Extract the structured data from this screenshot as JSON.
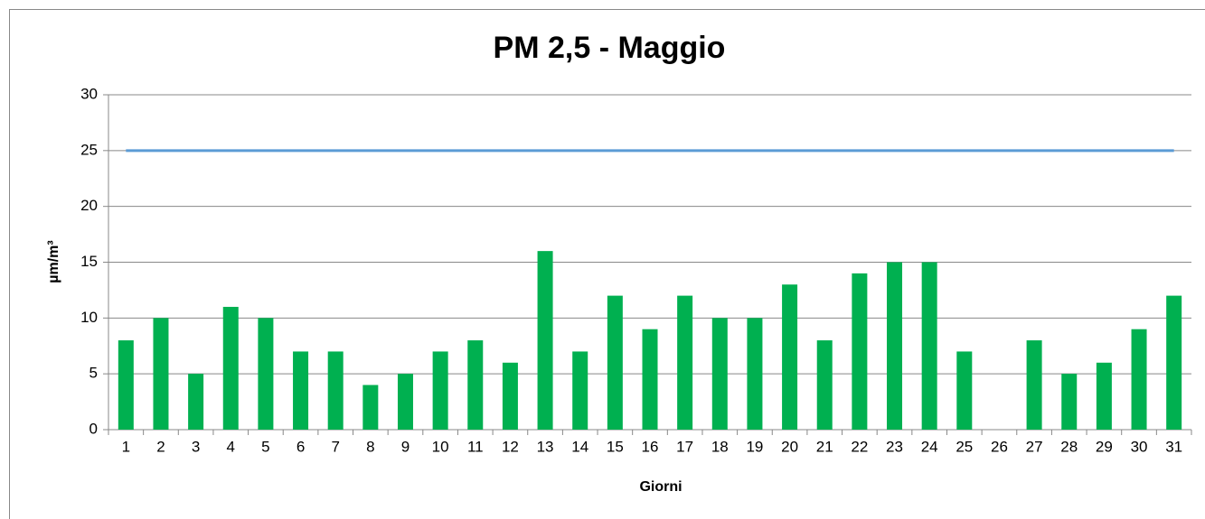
{
  "chart_data": {
    "type": "bar",
    "title": "PM 2,5 - Maggio",
    "x_label": "Giorni",
    "y_label": "µm/m³",
    "categories": [
      "1",
      "2",
      "3",
      "4",
      "5",
      "6",
      "7",
      "8",
      "9",
      "10",
      "11",
      "12",
      "13",
      "14",
      "15",
      "16",
      "17",
      "18",
      "19",
      "20",
      "21",
      "22",
      "23",
      "24",
      "25",
      "26",
      "27",
      "28",
      "29",
      "30",
      "31"
    ],
    "series": [
      {
        "type": "bar",
        "color": "#00b050",
        "values": [
          8,
          10,
          5,
          11,
          10,
          7,
          7,
          4,
          5,
          7,
          8,
          6,
          16,
          7,
          12,
          9,
          12,
          10,
          10,
          13,
          8,
          14,
          15,
          15,
          7,
          null,
          8,
          5,
          6,
          9,
          12
        ]
      },
      {
        "type": "line",
        "color": "#5b9bd5",
        "values": [
          25,
          25,
          25,
          25,
          25,
          25,
          25,
          25,
          25,
          25,
          25,
          25,
          25,
          25,
          25,
          25,
          25,
          25,
          25,
          25,
          25,
          25,
          25,
          25,
          25,
          25,
          25,
          25,
          25,
          25,
          25
        ]
      }
    ],
    "ylim": [
      0,
      30
    ],
    "yticks": [
      0,
      5,
      10,
      15,
      20,
      25,
      30
    ],
    "grid": true
  }
}
